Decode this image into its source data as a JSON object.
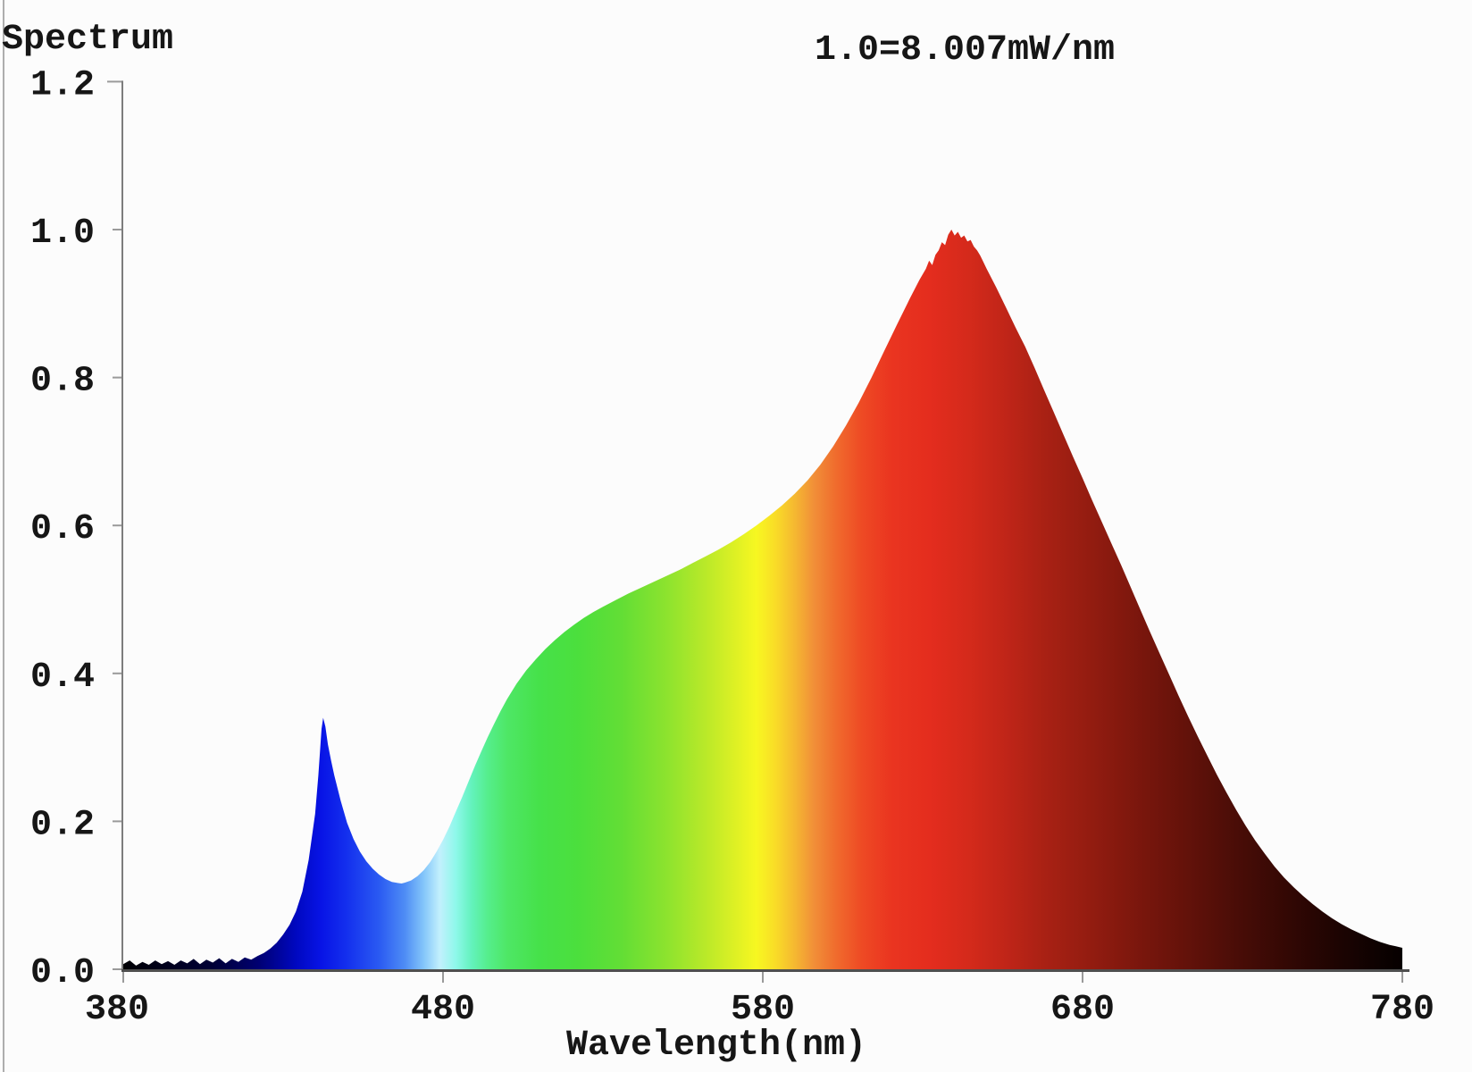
{
  "title": "Spectrum",
  "scale_label": "1.0=8.007mW/nm",
  "axes": {
    "x": {
      "label": "Wavelength(nm)",
      "min": 380,
      "max": 780,
      "ticks": [
        {
          "v": 380,
          "label": "380"
        },
        {
          "v": 480,
          "label": "480"
        },
        {
          "v": 580,
          "label": "580"
        },
        {
          "v": 680,
          "label": "680"
        },
        {
          "v": 780,
          "label": "780"
        }
      ]
    },
    "y": {
      "min": 0.0,
      "max": 1.2,
      "ticks": [
        {
          "v": 0.0,
          "label": "0.0"
        },
        {
          "v": 0.2,
          "label": "0.2"
        },
        {
          "v": 0.4,
          "label": "0.4"
        },
        {
          "v": 0.6,
          "label": "0.6"
        },
        {
          "v": 0.8,
          "label": "0.8"
        },
        {
          "v": 1.0,
          "label": "1.0"
        },
        {
          "v": 1.2,
          "label": "1.2"
        }
      ]
    }
  },
  "chart_data": {
    "type": "area",
    "title": "Spectrum",
    "scale_note": "1.0=8.007mW/nm",
    "xlabel": "Wavelength(nm)",
    "x_range": [
      380,
      780
    ],
    "y_range": [
      0,
      1.2
    ],
    "grid": false,
    "legend": false,
    "features": {
      "blue_peak": {
        "nm": 442,
        "value": 0.34
      },
      "trough": {
        "nm": 467,
        "value": 0.12
      },
      "main_peak": {
        "nm": 639,
        "value": 1.0
      },
      "value_at_780nm": 0.03,
      "noise_floor_region": [
        380,
        424
      ]
    },
    "points": [
      [
        380,
        0.007
      ],
      [
        382,
        0.012
      ],
      [
        384,
        0.005
      ],
      [
        386,
        0.01
      ],
      [
        388,
        0.006
      ],
      [
        390,
        0.012
      ],
      [
        392,
        0.007
      ],
      [
        394,
        0.011
      ],
      [
        396,
        0.006
      ],
      [
        398,
        0.012
      ],
      [
        400,
        0.008
      ],
      [
        402,
        0.014
      ],
      [
        404,
        0.007
      ],
      [
        406,
        0.013
      ],
      [
        408,
        0.009
      ],
      [
        410,
        0.015
      ],
      [
        412,
        0.008
      ],
      [
        414,
        0.014
      ],
      [
        416,
        0.01
      ],
      [
        418,
        0.016
      ],
      [
        420,
        0.013
      ],
      [
        422,
        0.018
      ],
      [
        424,
        0.022
      ],
      [
        426,
        0.028
      ],
      [
        428,
        0.036
      ],
      [
        430,
        0.047
      ],
      [
        432,
        0.06
      ],
      [
        434,
        0.078
      ],
      [
        436,
        0.105
      ],
      [
        438,
        0.148
      ],
      [
        440,
        0.21
      ],
      [
        441,
        0.262
      ],
      [
        442,
        0.325
      ],
      [
        442.5,
        0.34
      ],
      [
        443.2,
        0.328
      ],
      [
        444,
        0.304
      ],
      [
        445,
        0.282
      ],
      [
        446,
        0.262
      ],
      [
        448,
        0.228
      ],
      [
        450,
        0.198
      ],
      [
        452,
        0.176
      ],
      [
        454,
        0.159
      ],
      [
        456,
        0.146
      ],
      [
        458,
        0.136
      ],
      [
        460,
        0.128
      ],
      [
        462,
        0.122
      ],
      [
        464,
        0.118
      ],
      [
        466,
        0.1165
      ],
      [
        467,
        0.116
      ],
      [
        468,
        0.117
      ],
      [
        470,
        0.12
      ],
      [
        472,
        0.126
      ],
      [
        474,
        0.134
      ],
      [
        476,
        0.145
      ],
      [
        478,
        0.159
      ],
      [
        480,
        0.175
      ],
      [
        482,
        0.193
      ],
      [
        484,
        0.213
      ],
      [
        486,
        0.233
      ],
      [
        488,
        0.254
      ],
      [
        490,
        0.275
      ],
      [
        492,
        0.295
      ],
      [
        494,
        0.314
      ],
      [
        496,
        0.332
      ],
      [
        498,
        0.349
      ],
      [
        500,
        0.365
      ],
      [
        503,
        0.386
      ],
      [
        506,
        0.404
      ],
      [
        509,
        0.419
      ],
      [
        512,
        0.433
      ],
      [
        515,
        0.445
      ],
      [
        518,
        0.456
      ],
      [
        521,
        0.466
      ],
      [
        524,
        0.475
      ],
      [
        527,
        0.483
      ],
      [
        530,
        0.49
      ],
      [
        534,
        0.499
      ],
      [
        538,
        0.508
      ],
      [
        542,
        0.516
      ],
      [
        546,
        0.524
      ],
      [
        550,
        0.532
      ],
      [
        554,
        0.54
      ],
      [
        558,
        0.549
      ],
      [
        562,
        0.558
      ],
      [
        566,
        0.567
      ],
      [
        570,
        0.577
      ],
      [
        574,
        0.588
      ],
      [
        578,
        0.6
      ],
      [
        582,
        0.613
      ],
      [
        586,
        0.627
      ],
      [
        590,
        0.643
      ],
      [
        594,
        0.661
      ],
      [
        598,
        0.682
      ],
      [
        602,
        0.707
      ],
      [
        606,
        0.735
      ],
      [
        610,
        0.766
      ],
      [
        614,
        0.8
      ],
      [
        618,
        0.836
      ],
      [
        622,
        0.872
      ],
      [
        626,
        0.907
      ],
      [
        629,
        0.932
      ],
      [
        631,
        0.947
      ],
      [
        632,
        0.958
      ],
      [
        633,
        0.952
      ],
      [
        634,
        0.966
      ],
      [
        635,
        0.972
      ],
      [
        636,
        0.983
      ],
      [
        637,
        0.979
      ],
      [
        638,
        0.993
      ],
      [
        639,
        1.0
      ],
      [
        640,
        0.992
      ],
      [
        641,
        0.997
      ],
      [
        642,
        0.989
      ],
      [
        643,
        0.992
      ],
      [
        644,
        0.984
      ],
      [
        645,
        0.986
      ],
      [
        646,
        0.977
      ],
      [
        647,
        0.972
      ],
      [
        648,
        0.965
      ],
      [
        649,
        0.956
      ],
      [
        650,
        0.947
      ],
      [
        653,
        0.922
      ],
      [
        656,
        0.895
      ],
      [
        659,
        0.868
      ],
      [
        662,
        0.842
      ],
      [
        665,
        0.813
      ],
      [
        668,
        0.783
      ],
      [
        671,
        0.753
      ],
      [
        674,
        0.723
      ],
      [
        677,
        0.693
      ],
      [
        680,
        0.664
      ],
      [
        683,
        0.634
      ],
      [
        686,
        0.605
      ],
      [
        689,
        0.576
      ],
      [
        692,
        0.547
      ],
      [
        695,
        0.517
      ],
      [
        698,
        0.487
      ],
      [
        701,
        0.457
      ],
      [
        704,
        0.428
      ],
      [
        707,
        0.399
      ],
      [
        710,
        0.37
      ],
      [
        713,
        0.342
      ],
      [
        716,
        0.315
      ],
      [
        719,
        0.289
      ],
      [
        722,
        0.263
      ],
      [
        725,
        0.239
      ],
      [
        728,
        0.216
      ],
      [
        731,
        0.194
      ],
      [
        734,
        0.174
      ],
      [
        737,
        0.156
      ],
      [
        740,
        0.139
      ],
      [
        743,
        0.124
      ],
      [
        746,
        0.111
      ],
      [
        749,
        0.099
      ],
      [
        752,
        0.088
      ],
      [
        755,
        0.078
      ],
      [
        758,
        0.069
      ],
      [
        761,
        0.061
      ],
      [
        764,
        0.054
      ],
      [
        767,
        0.048
      ],
      [
        770,
        0.042
      ],
      [
        773,
        0.037
      ],
      [
        776,
        0.033
      ],
      [
        778,
        0.031
      ],
      [
        780,
        0.029
      ]
    ],
    "spectral_gradient": [
      [
        380,
        "#000004"
      ],
      [
        408,
        "#000036"
      ],
      [
        422,
        "#000070"
      ],
      [
        434,
        "#0008c0"
      ],
      [
        442,
        "#0814e6"
      ],
      [
        450,
        "#1430ee"
      ],
      [
        460,
        "#2a5af2"
      ],
      [
        468,
        "#4e8cf5"
      ],
      [
        474,
        "#84c6fa"
      ],
      [
        479,
        "#c2f0fd"
      ],
      [
        484,
        "#8ef8ea"
      ],
      [
        489,
        "#63f2bc"
      ],
      [
        494,
        "#55ee8c"
      ],
      [
        500,
        "#4ee766"
      ],
      [
        510,
        "#46e14a"
      ],
      [
        522,
        "#4bdf3d"
      ],
      [
        536,
        "#63de35"
      ],
      [
        550,
        "#8de32e"
      ],
      [
        562,
        "#b9e929"
      ],
      [
        572,
        "#e0f124"
      ],
      [
        578,
        "#f7f721"
      ],
      [
        584,
        "#f9dc27"
      ],
      [
        590,
        "#f5b831"
      ],
      [
        596,
        "#f18f38"
      ],
      [
        603,
        "#f06b2d"
      ],
      [
        611,
        "#ee4a24"
      ],
      [
        620,
        "#ea3520"
      ],
      [
        632,
        "#e42d1e"
      ],
      [
        644,
        "#d52a1b"
      ],
      [
        656,
        "#c02518"
      ],
      [
        668,
        "#a92114"
      ],
      [
        680,
        "#971d11"
      ],
      [
        696,
        "#7d170d"
      ],
      [
        712,
        "#64120a"
      ],
      [
        728,
        "#4a0d07"
      ],
      [
        744,
        "#330804"
      ],
      [
        760,
        "#1d0402"
      ],
      [
        772,
        "#0e0201"
      ],
      [
        780,
        "#060000"
      ]
    ],
    "axis_colors": {
      "axis_line": "#7d7d7d",
      "baseline": "#4f4f4f",
      "tick": "#9a9a9a",
      "text": "#161616"
    }
  }
}
